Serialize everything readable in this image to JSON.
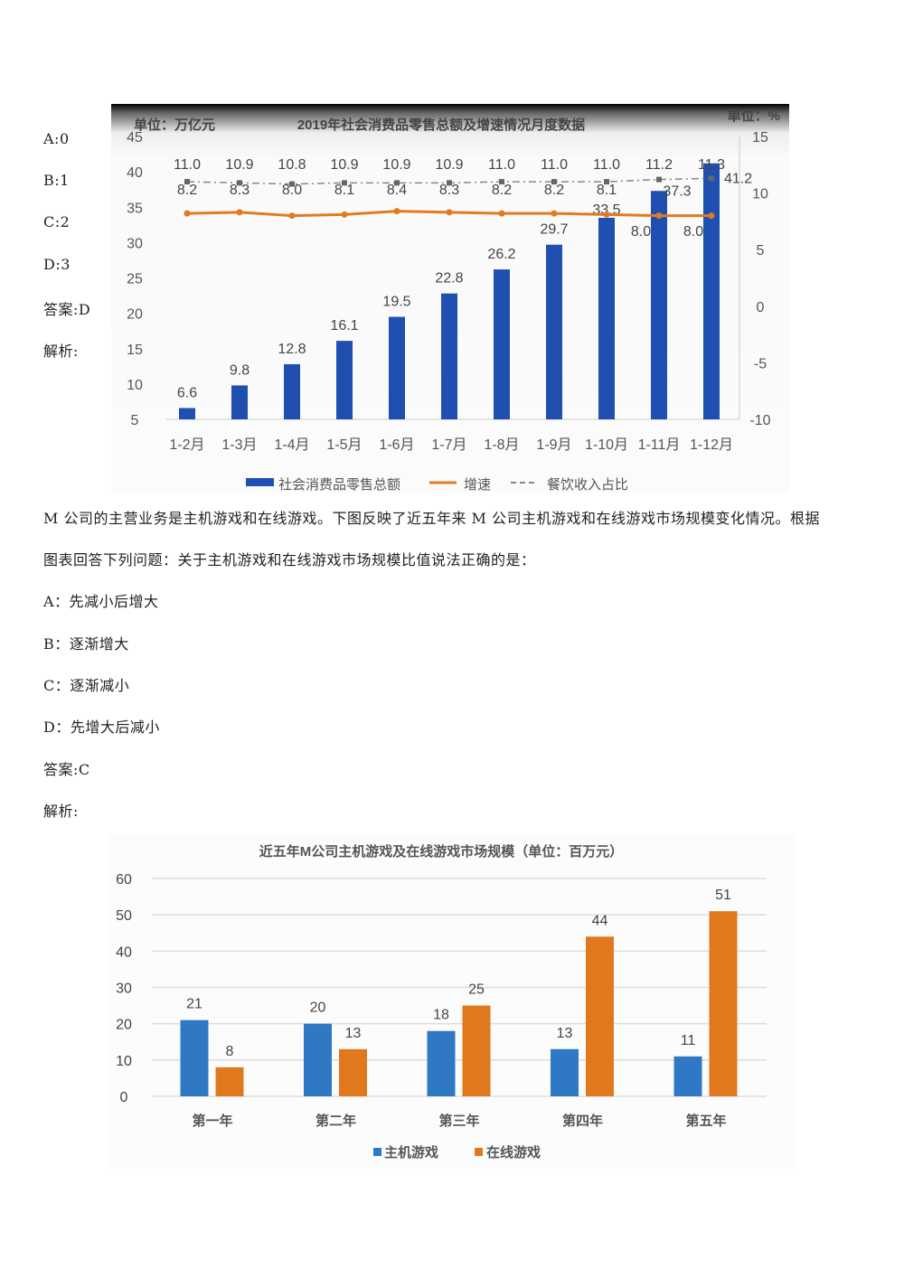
{
  "document": {
    "lines": [
      "A:0",
      "B:1",
      "C:2",
      "D:3",
      "答案:D",
      "解析:",
      "M 公司的主营业务是主机游戏和在线游戏。下图反映了近五年来 M 公司主机游戏和在线游戏市场规模变化情况。根据",
      "图表回答下列问题：关于主机游戏和在线游戏市场规模比值说法正确的是：",
      "A：先减小后增大",
      "B：逐渐增大",
      "C：逐渐减小",
      "D：先增大后减小",
      "答案:C",
      "解析:"
    ]
  },
  "chart_data": [
    {
      "type": "bar",
      "title": "2019年社会消费品零售总额及增速情况月度数据",
      "left_unit": "单位：万亿元",
      "right_unit": "单位：%",
      "categories": [
        "1-2月",
        "1-3月",
        "1-4月",
        "1-5月",
        "1-6月",
        "1-7月",
        "1-8月",
        "1-9月",
        "1-10月",
        "1-11月",
        "1-12月"
      ],
      "ylim": [
        5,
        45
      ],
      "yticks": [
        "45",
        "40",
        "35",
        "30",
        "25",
        "20",
        "15",
        "10",
        "5"
      ],
      "y2lim": [
        -10,
        15
      ],
      "y2ticks": [
        "15",
        "10",
        "5",
        "0",
        "-5",
        "-10"
      ],
      "grid": false,
      "legend": "bottom",
      "series": [
        {
          "name": "社会消费品零售总额",
          "kind": "bar",
          "axis": "left",
          "color": "#1f4fb0",
          "values": [
            6.6,
            9.8,
            12.8,
            16.1,
            19.5,
            22.8,
            26.2,
            29.7,
            33.5,
            37.3,
            41.2
          ]
        },
        {
          "name": "增速",
          "kind": "line",
          "axis": "right",
          "color": "#e07b22",
          "values": [
            8.2,
            8.3,
            8.0,
            8.1,
            8.4,
            8.3,
            8.2,
            8.2,
            8.1,
            8.0,
            8.0
          ]
        },
        {
          "name": "餐饮收入占比",
          "kind": "dashed-line",
          "axis": "right",
          "color": "#888888",
          "values": [
            11.0,
            10.9,
            10.8,
            10.9,
            10.9,
            10.9,
            11.0,
            11.0,
            11.0,
            11.2,
            11.3
          ]
        }
      ]
    },
    {
      "type": "bar",
      "title": "近五年M公司主机游戏及在线游戏市场规模（单位：百万元）",
      "categories": [
        "第一年",
        "第二年",
        "第三年",
        "第四年",
        "第五年"
      ],
      "ylim": [
        0,
        60
      ],
      "yticks": [
        "0",
        "10",
        "20",
        "30",
        "40",
        "50",
        "60"
      ],
      "grid": true,
      "legend": "bottom",
      "series": [
        {
          "name": "主机游戏",
          "color": "#2f78c4",
          "values": [
            21,
            20,
            18,
            13,
            11
          ]
        },
        {
          "name": "在线游戏",
          "color": "#e0781e",
          "values": [
            8,
            13,
            25,
            44,
            51
          ]
        }
      ]
    }
  ]
}
